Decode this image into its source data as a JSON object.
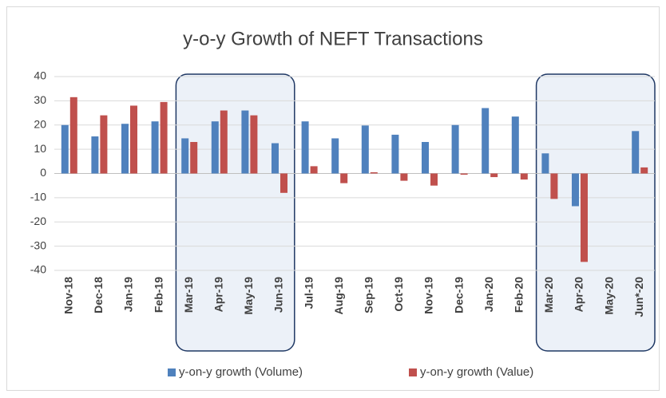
{
  "chart_data": {
    "type": "bar",
    "title": "y-o-y Growth of NEFT Transactions",
    "categories": [
      "Nov-18",
      "Dec-18",
      "Jan-19",
      "Feb-19",
      "Mar-19",
      "Apr-19",
      "May-19",
      "Jun-19",
      "Jul-19",
      "Aug-19",
      "Sep-19",
      "Oct-19",
      "Nov-19",
      "Dec-19",
      "Jan-20",
      "Feb-20",
      "Mar-20",
      "Apr-20",
      "May-20",
      "Jun*-20"
    ],
    "series": [
      {
        "name": "y-on-y growth (Volume)",
        "color": "#4f81bd",
        "values": [
          20,
          15.3,
          20.5,
          21.5,
          14.5,
          21.5,
          26,
          12.5,
          21.5,
          14.5,
          19.8,
          16,
          13,
          20,
          27,
          23.5,
          8.3,
          -13.5,
          null,
          17.5
        ]
      },
      {
        "name": "y-on-y growth (Value)",
        "color": "#c0504d",
        "values": [
          31.5,
          24,
          28,
          29.5,
          13,
          26,
          24,
          -8,
          3,
          -4,
          0.5,
          -3,
          -5,
          -0.5,
          -1.5,
          -2.5,
          -10.5,
          -36.5,
          null,
          2.5
        ]
      }
    ],
    "ylim": [
      -40,
      40
    ],
    "yticks": [
      -40,
      -30,
      -20,
      -10,
      0,
      10,
      20,
      30,
      40
    ],
    "grid": true,
    "legend": "bottom"
  }
}
